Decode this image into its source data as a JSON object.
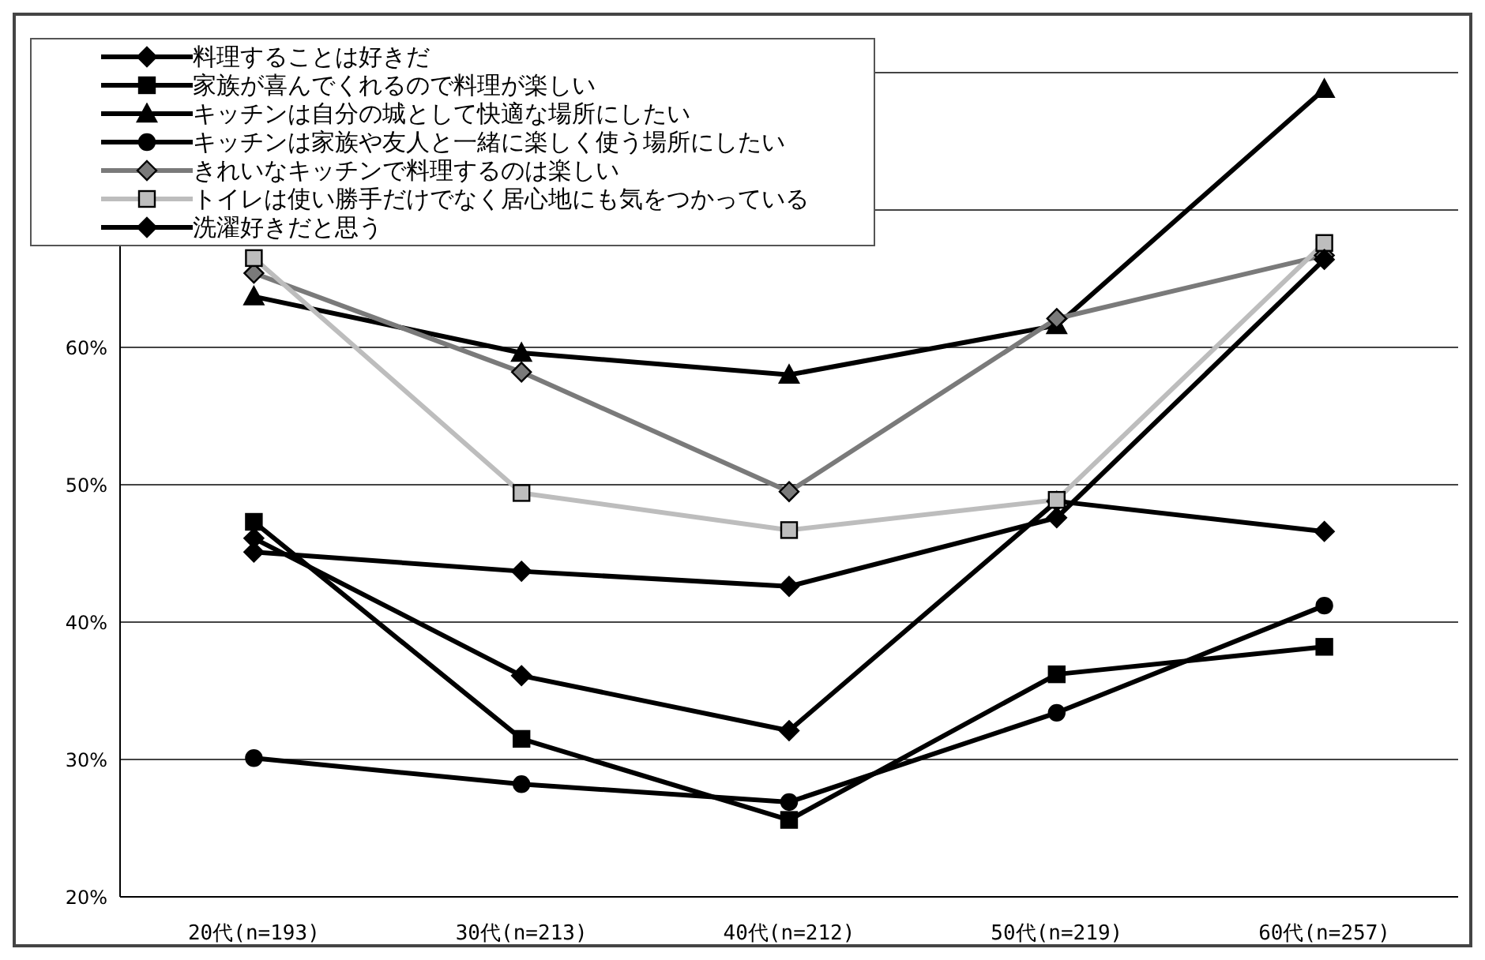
{
  "chart_data": {
    "type": "line",
    "categories": [
      "20代(n=193)",
      "30代(n=213)",
      "40代(n=212)",
      "50代(n=219)",
      "60代(n=257)"
    ],
    "ylim": [
      20,
      80
    ],
    "yticks": [
      {
        "value": 20,
        "label": "20%"
      },
      {
        "value": 30,
        "label": "30%"
      },
      {
        "value": 40,
        "label": "40%"
      },
      {
        "value": 50,
        "label": "50%"
      },
      {
        "value": 60,
        "label": "60%"
      },
      {
        "value": 70,
        "label": null
      },
      {
        "value": 80,
        "label": null
      }
    ],
    "grid": "y",
    "legend": "top left",
    "series": [
      {
        "name": "料理することは好きだ",
        "color": "#000000",
        "marker": "diamond",
        "values": [
          46.1,
          36.1,
          32.1,
          48.8,
          46.6
        ]
      },
      {
        "name": "家族が喜んでくれるので料理が楽しい",
        "color": "#000000",
        "marker": "square",
        "values": [
          47.3,
          31.5,
          25.6,
          36.2,
          38.2
        ]
      },
      {
        "name": "キッチンは自分の城として快適な場所にしたい",
        "color": "#000000",
        "marker": "triangle",
        "values": [
          63.7,
          59.6,
          58.0,
          61.6,
          78.8
        ]
      },
      {
        "name": "キッチンは家族や友人と一緒に楽しく使う場所にしたい",
        "color": "#000000",
        "marker": "circle",
        "values": [
          30.1,
          28.2,
          26.9,
          33.4,
          41.2
        ]
      },
      {
        "name": "きれいなキッチンで料理するのは楽しい",
        "color": "#7a7a7a",
        "marker": "diamond",
        "values": [
          65.4,
          58.2,
          49.5,
          62.1,
          66.7
        ]
      },
      {
        "name": "トイレは使い勝手だけでなく居心地にも気をつかっている",
        "color": "#bdbdbd",
        "marker": "square",
        "values": [
          66.5,
          49.4,
          46.7,
          48.9,
          67.6
        ]
      },
      {
        "name": "洗濯好きだと思う",
        "color": "#000000",
        "marker": "diamond",
        "values": [
          45.1,
          43.7,
          42.6,
          47.6,
          66.4
        ]
      }
    ]
  }
}
